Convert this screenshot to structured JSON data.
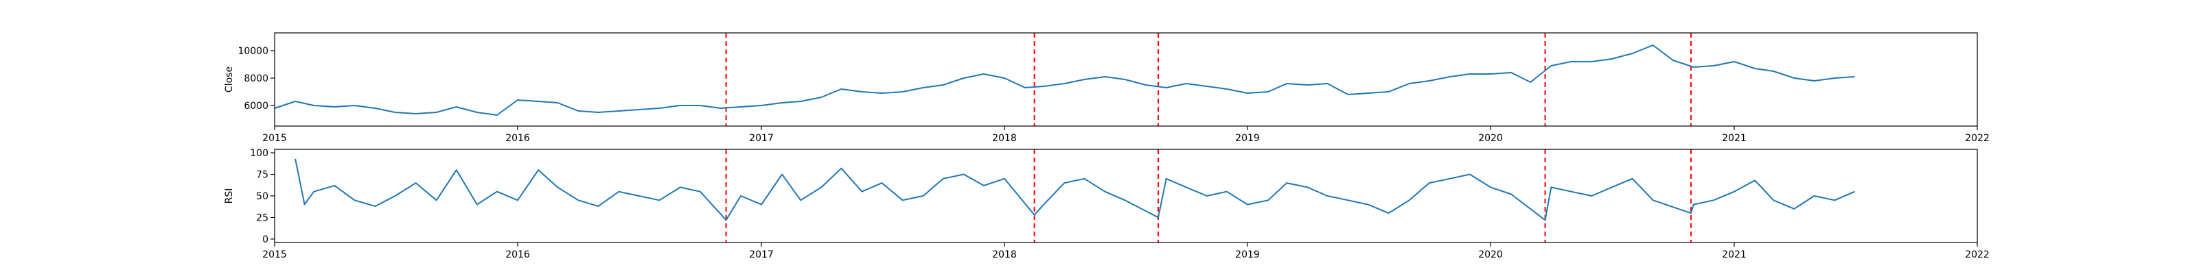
{
  "chart_data": [
    {
      "type": "line",
      "title": "",
      "xlabel": "",
      "ylabel": "Close",
      "xlim": [
        "2015-01-01",
        "2022-01-01"
      ],
      "ylim": [
        4500,
        11300
      ],
      "x_ticks": [
        "2015",
        "2016",
        "2017",
        "2018",
        "2019",
        "2020",
        "2021",
        "2022"
      ],
      "y_ticks": [
        6000,
        8000,
        10000
      ],
      "grid": false,
      "legend": "none",
      "line_color": "#1f77b4",
      "event_line_color": "#ff0000",
      "event_dates": [
        "2016-11-09",
        "2018-02-15",
        "2018-08-20",
        "2020-03-23",
        "2020-10-28"
      ],
      "series": [
        {
          "dates": [
            "2015-01-01",
            "2015-02-01",
            "2015-03-01",
            "2015-04-01",
            "2015-05-01",
            "2015-06-01",
            "2015-07-01",
            "2015-08-01",
            "2015-09-01",
            "2015-10-01",
            "2015-11-01",
            "2015-12-01",
            "2016-01-01",
            "2016-02-01",
            "2016-03-01",
            "2016-04-01",
            "2016-05-01",
            "2016-06-01",
            "2016-07-01",
            "2016-08-01",
            "2016-09-01",
            "2016-10-01",
            "2016-11-01",
            "2016-12-01",
            "2017-01-01",
            "2017-02-01",
            "2017-03-01",
            "2017-04-01",
            "2017-05-01",
            "2017-06-01",
            "2017-07-01",
            "2017-08-01",
            "2017-09-01",
            "2017-10-01",
            "2017-11-01",
            "2017-12-01",
            "2018-01-01",
            "2018-02-01",
            "2018-03-01",
            "2018-04-01",
            "2018-05-01",
            "2018-06-01",
            "2018-07-01",
            "2018-08-01",
            "2018-09-01",
            "2018-10-01",
            "2018-11-01",
            "2018-12-01",
            "2019-01-01",
            "2019-02-01",
            "2019-03-01",
            "2019-04-01",
            "2019-05-01",
            "2019-06-01",
            "2019-07-01",
            "2019-08-01",
            "2019-09-01",
            "2019-10-01",
            "2019-11-01",
            "2019-12-01",
            "2020-01-01",
            "2020-02-01",
            "2020-03-01",
            "2020-04-01",
            "2020-05-01",
            "2020-06-01",
            "2020-07-01",
            "2020-08-01",
            "2020-09-01",
            "2020-10-01",
            "2020-11-01",
            "2020-12-01",
            "2021-01-01",
            "2021-02-01",
            "2021-03-01",
            "2021-04-01",
            "2021-05-01",
            "2021-06-01",
            "2021-07-01"
          ],
          "values": [
            5800,
            6300,
            6000,
            5900,
            6000,
            5800,
            5500,
            5400,
            5500,
            5900,
            5500,
            5300,
            6400,
            6300,
            6200,
            5600,
            5500,
            5600,
            5700,
            5800,
            6000,
            6000,
            5800,
            5900,
            6000,
            6200,
            6300,
            6600,
            7200,
            7000,
            6900,
            7000,
            7300,
            7500,
            8000,
            8300,
            8000,
            7300,
            7400,
            7600,
            7900,
            8100,
            7900,
            7500,
            7300,
            7600,
            7400,
            7200,
            6900,
            7000,
            7600,
            7500,
            7600,
            6800,
            6900,
            7000,
            7600,
            7800,
            8100,
            8300,
            8300,
            8400,
            7700,
            8900,
            9200,
            9200,
            9400,
            9800,
            10400,
            9300,
            8800,
            8900,
            9200,
            8700,
            8500,
            8000,
            7800,
            8000,
            8100
          ]
        }
      ]
    },
    {
      "type": "line",
      "title": "",
      "xlabel": "",
      "ylabel": "RSI",
      "xlim": [
        "2015-01-01",
        "2022-01-01"
      ],
      "ylim": [
        -4,
        104
      ],
      "x_ticks": [
        "2015",
        "2016",
        "2017",
        "2018",
        "2019",
        "2020",
        "2021",
        "2022"
      ],
      "y_ticks": [
        0,
        25,
        50,
        75,
        100
      ],
      "grid": false,
      "legend": "none",
      "line_color": "#1f77b4",
      "event_line_color": "#ff0000",
      "event_dates": [
        "2016-11-09",
        "2018-02-15",
        "2018-08-20",
        "2020-03-23",
        "2020-10-28"
      ],
      "series": [
        {
          "dates": [
            "2015-02-01",
            "2015-02-15",
            "2015-03-01",
            "2015-04-01",
            "2015-05-01",
            "2015-06-01",
            "2015-07-01",
            "2015-08-01",
            "2015-09-01",
            "2015-10-01",
            "2015-11-01",
            "2015-12-01",
            "2016-01-01",
            "2016-02-01",
            "2016-03-01",
            "2016-04-01",
            "2016-05-01",
            "2016-06-01",
            "2016-07-01",
            "2016-08-01",
            "2016-09-01",
            "2016-10-01",
            "2016-11-09",
            "2016-12-01",
            "2017-01-01",
            "2017-02-01",
            "2017-03-01",
            "2017-04-01",
            "2017-05-01",
            "2017-06-01",
            "2017-07-01",
            "2017-08-01",
            "2017-09-01",
            "2017-10-01",
            "2017-11-01",
            "2017-12-01",
            "2018-01-01",
            "2018-02-15",
            "2018-03-01",
            "2018-04-01",
            "2018-05-01",
            "2018-06-01",
            "2018-07-01",
            "2018-08-20",
            "2018-09-01",
            "2018-10-01",
            "2018-11-01",
            "2018-12-01",
            "2019-01-01",
            "2019-02-01",
            "2019-03-01",
            "2019-04-01",
            "2019-05-01",
            "2019-06-01",
            "2019-07-01",
            "2019-08-01",
            "2019-09-01",
            "2019-10-01",
            "2019-11-01",
            "2019-12-01",
            "2020-01-01",
            "2020-02-01",
            "2020-03-23",
            "2020-04-01",
            "2020-05-01",
            "2020-06-01",
            "2020-07-01",
            "2020-08-01",
            "2020-09-01",
            "2020-10-28",
            "2020-11-01",
            "2020-12-01",
            "2021-01-01",
            "2021-02-01",
            "2021-03-01",
            "2021-04-01",
            "2021-05-01",
            "2021-06-01",
            "2021-07-01"
          ],
          "values": [
            93,
            40,
            55,
            62,
            45,
            38,
            50,
            65,
            45,
            80,
            40,
            55,
            45,
            80,
            60,
            45,
            38,
            55,
            50,
            45,
            60,
            55,
            22,
            50,
            40,
            75,
            45,
            60,
            82,
            55,
            65,
            45,
            50,
            70,
            75,
            62,
            70,
            28,
            40,
            65,
            70,
            55,
            45,
            25,
            70,
            60,
            50,
            55,
            40,
            45,
            65,
            60,
            50,
            45,
            40,
            30,
            45,
            65,
            70,
            75,
            60,
            52,
            22,
            60,
            55,
            50,
            60,
            70,
            45,
            30,
            40,
            45,
            55,
            68,
            45,
            35,
            50,
            45,
            55
          ]
        }
      ]
    }
  ]
}
